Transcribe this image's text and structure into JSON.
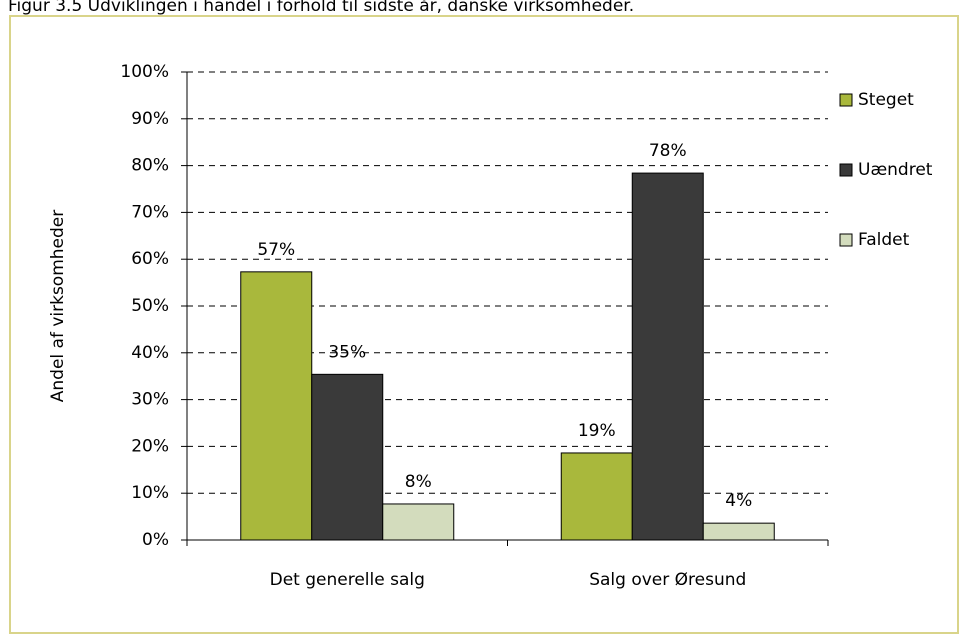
{
  "chart_data": {
    "type": "bar",
    "title": "Figur 3.5 Udviklingen i handel i forhold til sidste år, danske virksomheder.",
    "ylabel": "Andel af virksomheder",
    "categories": [
      "Det generelle salg",
      "Salg over Øresund"
    ],
    "series": [
      {
        "name": "Steget",
        "color": "#a9b83c",
        "values": [
          57.3,
          18.6
        ],
        "value_labels": [
          "57%",
          "19%"
        ]
      },
      {
        "name": "Uændret",
        "color": "#3a3a3a",
        "values": [
          35.4,
          78.4
        ],
        "value_labels": [
          "35%",
          "78%"
        ]
      },
      {
        "name": "Faldet",
        "color": "#d3dcbd",
        "values": [
          7.7,
          3.6
        ],
        "value_labels": [
          "8%",
          "4%"
        ]
      }
    ],
    "ylim": [
      0,
      100
    ],
    "yticks": [
      {
        "value": 0,
        "label": "0%"
      },
      {
        "value": 10,
        "label": "10%"
      },
      {
        "value": 20,
        "label": "20%"
      },
      {
        "value": 30,
        "label": "30%"
      },
      {
        "value": 40,
        "label": "40%"
      },
      {
        "value": 50,
        "label": "50%"
      },
      {
        "value": 60,
        "label": "60%"
      },
      {
        "value": 70,
        "label": "70%"
      },
      {
        "value": 80,
        "label": "80%"
      },
      {
        "value": 90,
        "label": "90%"
      },
      {
        "value": 100,
        "label": "100%"
      }
    ],
    "grid": true,
    "legend": "right"
  }
}
